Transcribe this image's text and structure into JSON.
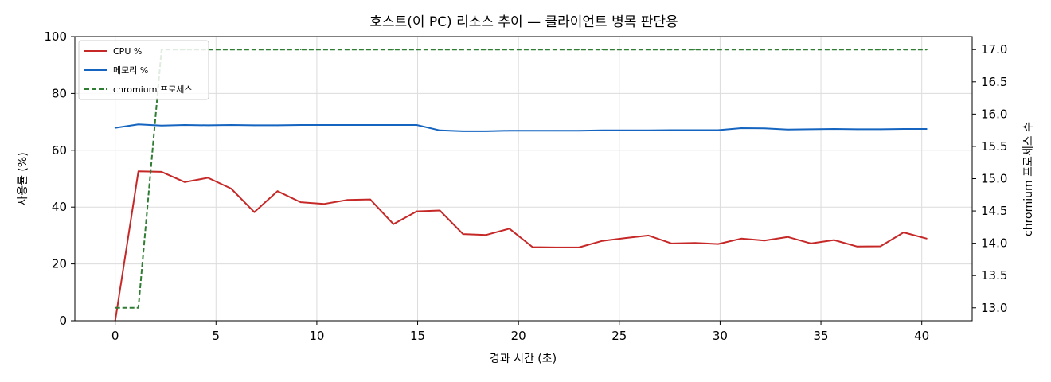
{
  "chart_data": {
    "type": "line",
    "title": "호스트(이 PC) 리소스 추이 — 클라이언트 병목 판단용",
    "xlabel": "경과 시간 (초)",
    "ylabel": "사용률 (%)",
    "y2label": "chromium 프로세스 수",
    "xlim": [
      -2,
      42.5
    ],
    "ylim": [
      0,
      100
    ],
    "y2lim": [
      12.8,
      17.2
    ],
    "xticks": [
      0,
      5,
      10,
      15,
      20,
      25,
      30,
      35,
      40
    ],
    "yticks": [
      0,
      20,
      40,
      60,
      80,
      100
    ],
    "y2ticks": [
      "13.0",
      "13.5",
      "14.0",
      "14.5",
      "15.0",
      "15.5",
      "16.0",
      "16.5",
      "17.0"
    ],
    "grid": true,
    "legend_position": "top-left",
    "x": [
      0,
      1.15,
      2.3,
      3.45,
      4.6,
      5.75,
      6.9,
      8.05,
      9.2,
      10.35,
      11.5,
      12.65,
      13.8,
      14.95,
      16.1,
      17.25,
      18.4,
      19.55,
      20.7,
      21.85,
      23.0,
      24.15,
      25.3,
      26.45,
      27.6,
      28.75,
      29.9,
      31.05,
      32.2,
      33.35,
      34.5,
      35.65,
      36.8,
      37.95,
      39.1,
      40.25
    ],
    "series": [
      {
        "name": "CPU %",
        "axis": "left",
        "color": "#c62828",
        "style": "solid",
        "values": [
          0,
          52.6,
          52.4,
          48.8,
          50.3,
          46.5,
          38.2,
          45.6,
          41.7,
          41.1,
          42.5,
          42.7,
          34.0,
          38.5,
          38.8,
          30.5,
          30.2,
          32.4,
          25.9,
          25.8,
          25.8,
          28.1,
          29.1,
          30.0,
          27.2,
          27.4,
          27.0,
          28.9,
          28.2,
          29.5,
          27.2,
          28.4,
          26.1,
          26.2,
          31.1,
          28.9
        ]
      },
      {
        "name": "메모리 %",
        "axis": "left",
        "color": "#1565c0",
        "style": "solid",
        "values": [
          67.9,
          69.1,
          68.7,
          68.9,
          68.8,
          68.9,
          68.8,
          68.8,
          68.9,
          68.9,
          68.9,
          68.9,
          68.9,
          68.9,
          67.0,
          66.7,
          66.7,
          66.9,
          66.9,
          66.9,
          66.9,
          67.0,
          67.0,
          67.0,
          67.1,
          67.1,
          67.1,
          67.8,
          67.7,
          67.3,
          67.4,
          67.5,
          67.4,
          67.4,
          67.5,
          67.5
        ]
      },
      {
        "name": "chromium 프로세스",
        "axis": "right",
        "color": "#2e7d32",
        "style": "dashed",
        "values": [
          13,
          13,
          17,
          17,
          17,
          17,
          17,
          17,
          17,
          17,
          17,
          17,
          17,
          17,
          17,
          17,
          17,
          17,
          17,
          17,
          17,
          17,
          17,
          17,
          17,
          17,
          17,
          17,
          17,
          17,
          17,
          17,
          17,
          17,
          17,
          17
        ]
      }
    ]
  }
}
